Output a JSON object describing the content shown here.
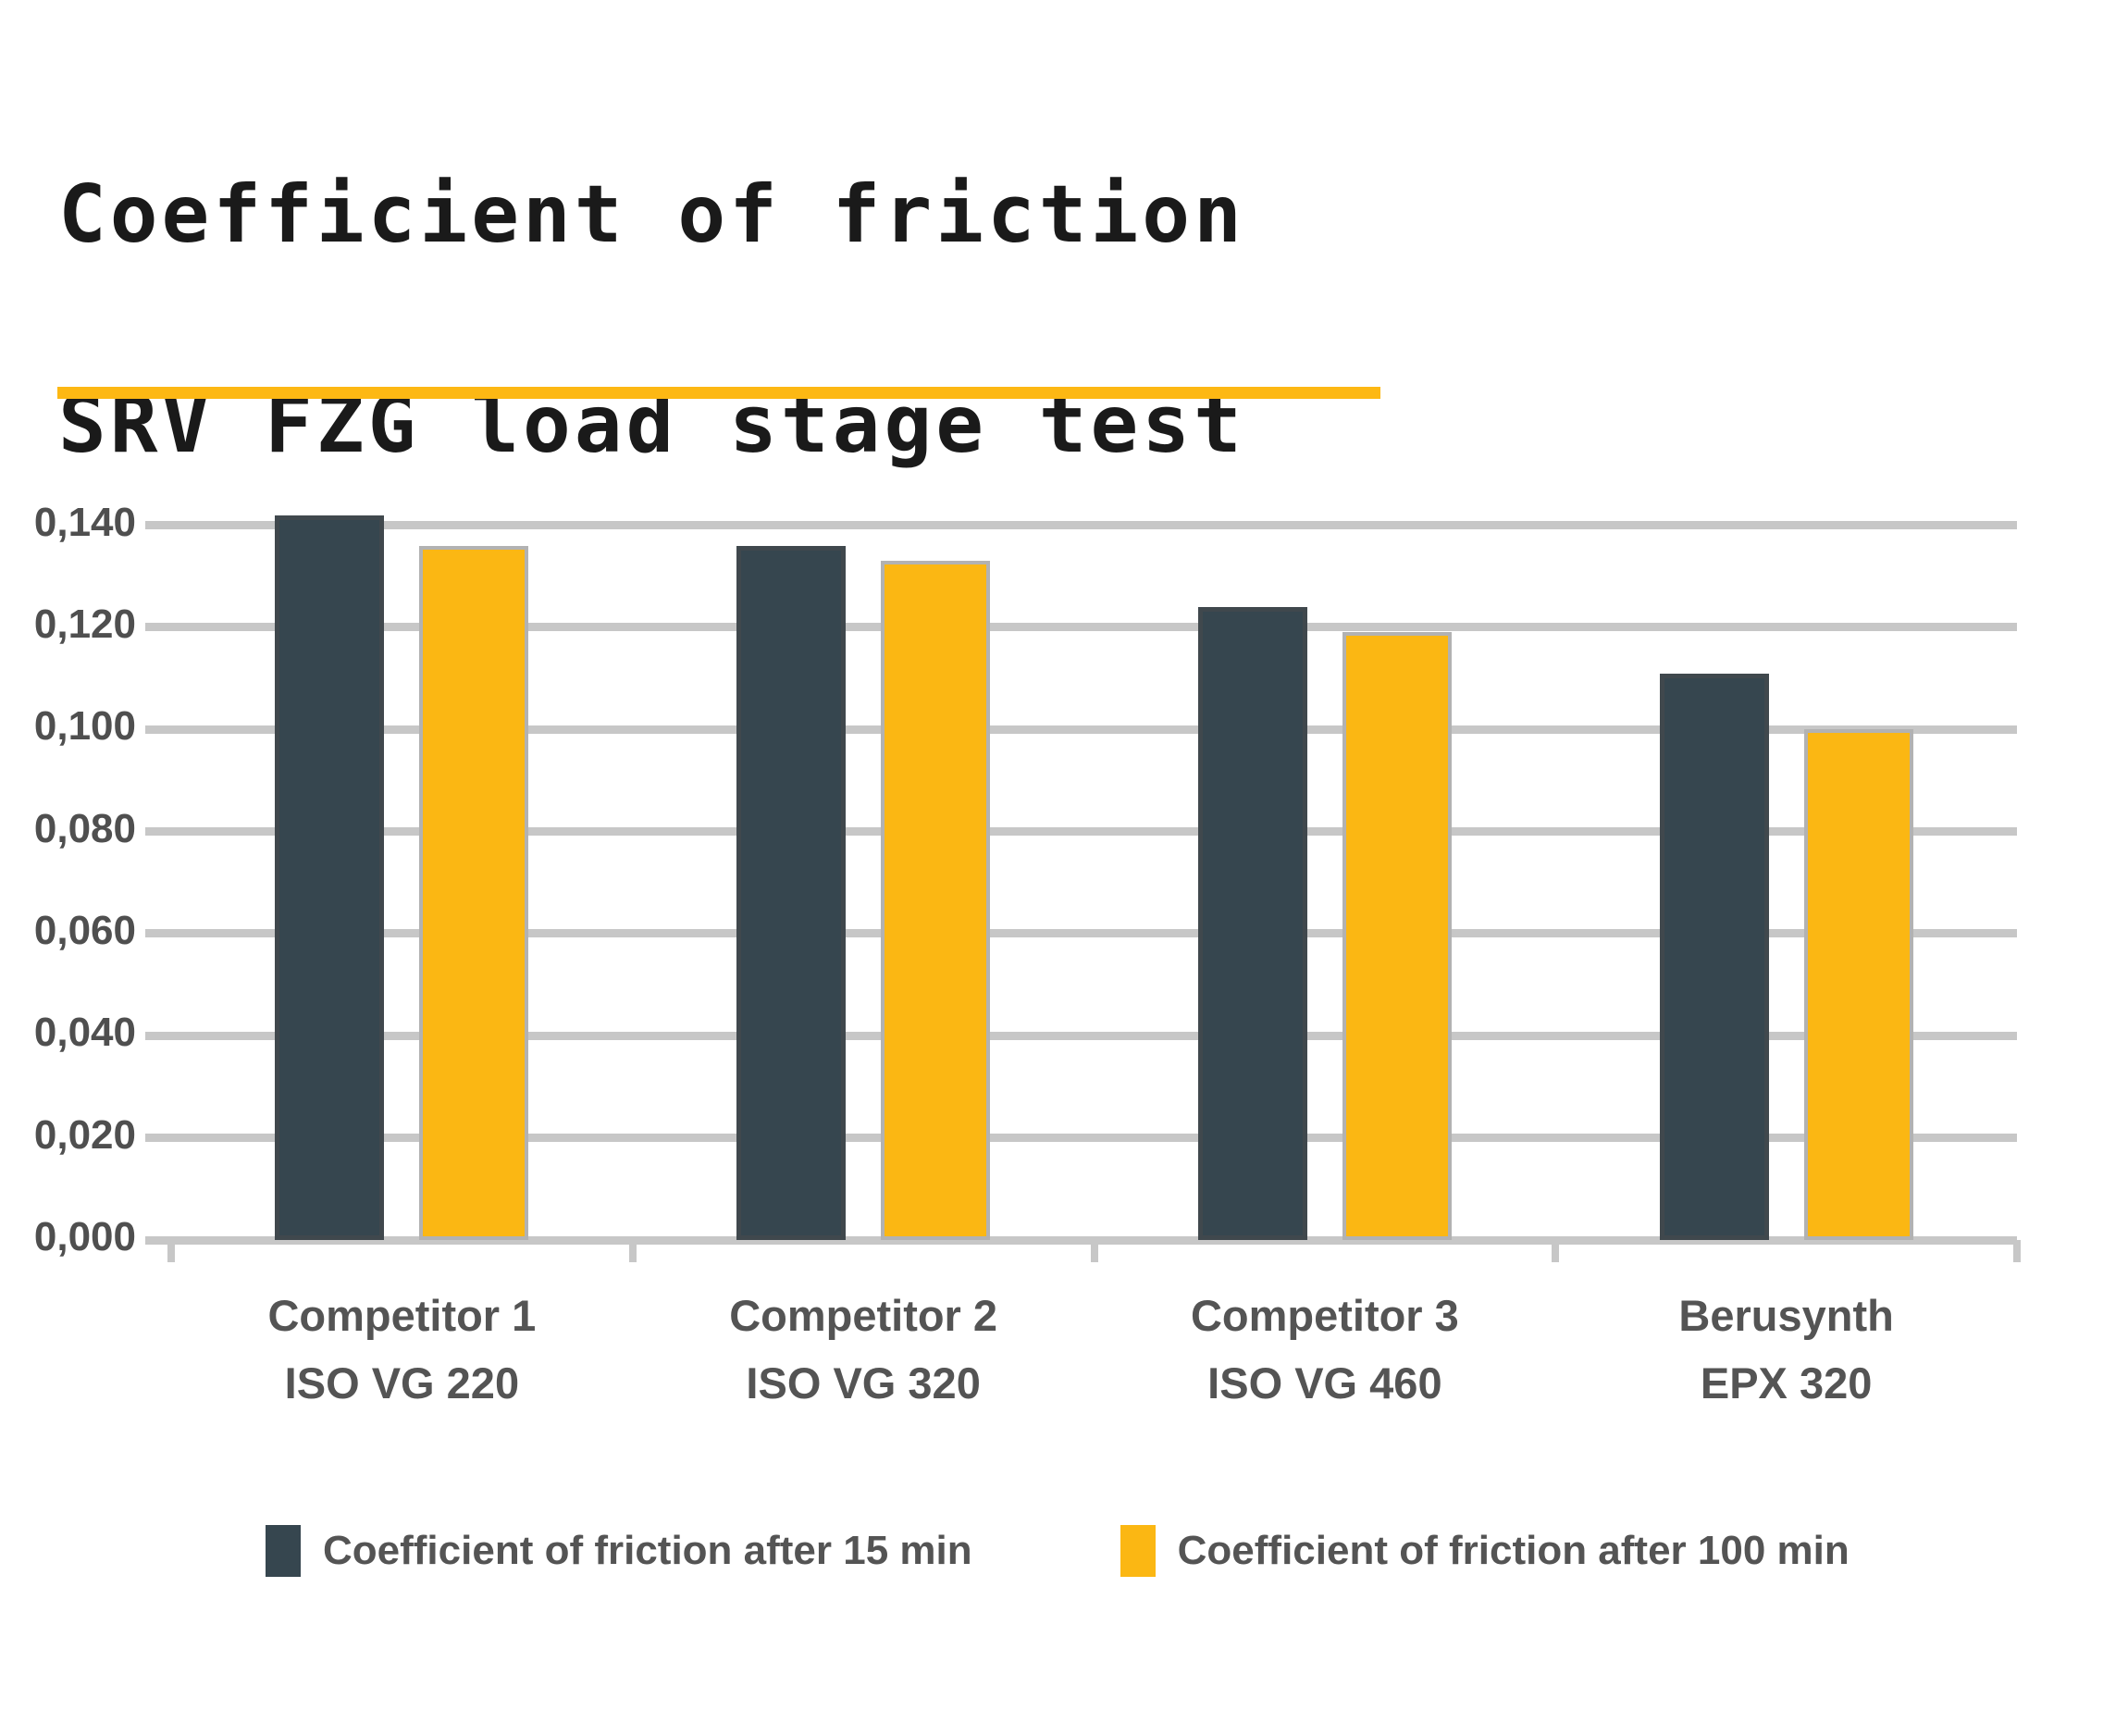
{
  "title": {
    "line1": "Coefficient of friction",
    "line2": "SRV FZG load stage test"
  },
  "colors": {
    "series1": "#36464F",
    "series2": "#FBB713",
    "gridline": "#C7C7C7",
    "divider_rule": "#FDB813",
    "text": "#545454",
    "title_text": "#1A1A1A"
  },
  "chart_data": {
    "type": "bar",
    "title": "Coefficient of friction SRV FZG load stage test",
    "xlabel": "",
    "ylabel": "",
    "ylim": [
      0,
      0.145
    ],
    "grid": true,
    "legend_position": "bottom",
    "categories": [
      {
        "name": "Competitor 1",
        "grade": "ISO VG 220"
      },
      {
        "name": "Competitor 2",
        "grade": "ISO VG 320"
      },
      {
        "name": "Competitor 3",
        "grade": "ISO VG 460"
      },
      {
        "name": "Berusynth",
        "grade": "EPX 320"
      }
    ],
    "yticks": [
      {
        "value": 0.14,
        "label": "0,140"
      },
      {
        "value": 0.12,
        "label": "0,120"
      },
      {
        "value": 0.1,
        "label": "0,100"
      },
      {
        "value": 0.08,
        "label": "0,080"
      },
      {
        "value": 0.06,
        "label": "0,060"
      },
      {
        "value": 0.04,
        "label": "0,040"
      },
      {
        "value": 0.02,
        "label": "0,020"
      },
      {
        "value": 0.0,
        "label": "0,000"
      }
    ],
    "series": [
      {
        "name": "Coefficient of friction after 15 min",
        "color": "#36464F",
        "values": [
          0.142,
          0.136,
          0.124,
          0.111
        ]
      },
      {
        "name": "Coefficient of friction after 100 min",
        "color": "#FBB713",
        "values": [
          0.136,
          0.133,
          0.119,
          0.1
        ]
      }
    ]
  }
}
